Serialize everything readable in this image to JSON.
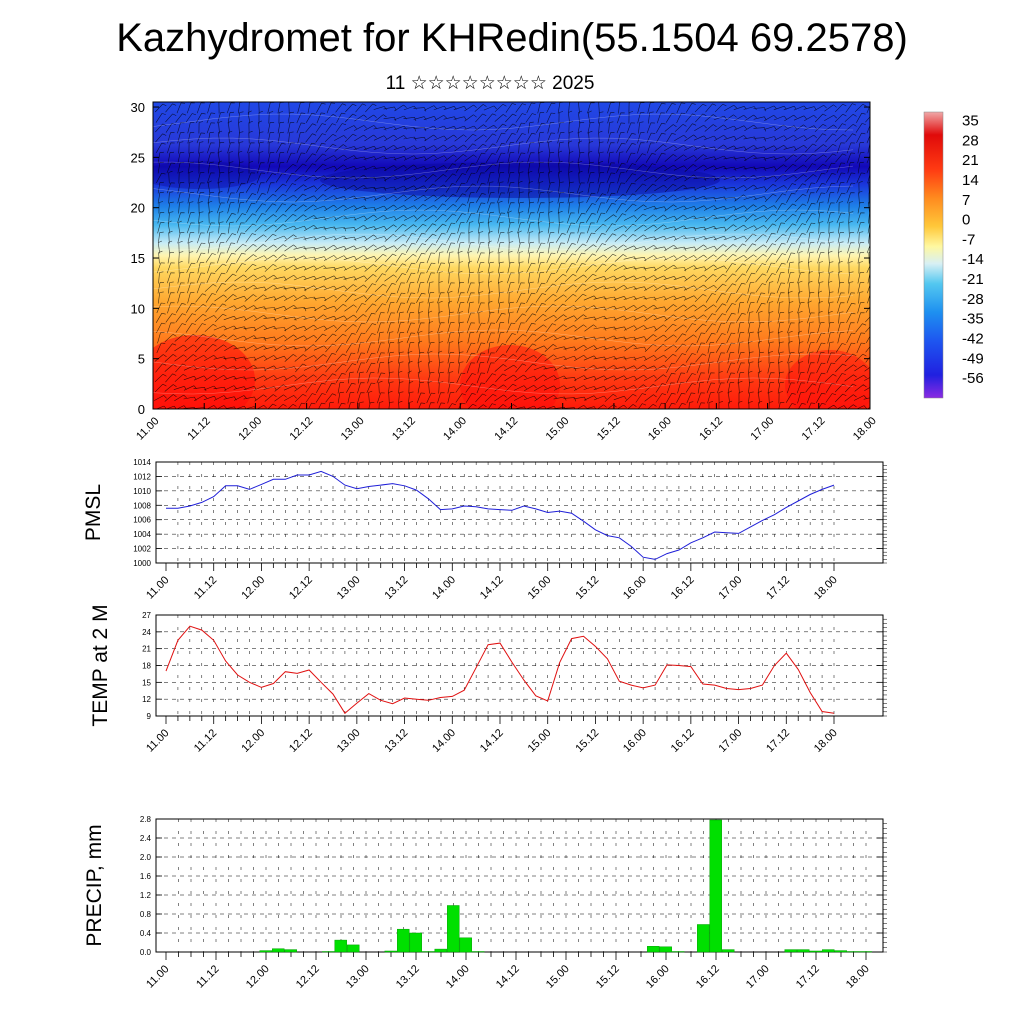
{
  "page": {
    "title": "Kazhydromet for KHRedin(55.1504 69.2578)",
    "subtitle": "11 ☆☆☆☆☆☆☆☆ 2025"
  },
  "colors": {
    "pmsl_line": "#1f1fd8",
    "temp_line": "#e01010",
    "precip_bar": "#00e000",
    "precip_edge": "#00a000"
  },
  "chart_data": [
    {
      "id": "cross_section",
      "type": "heatmap",
      "title": "",
      "xlabel": "",
      "ylabel": "",
      "x_ticks": [
        "11.00",
        "11.12",
        "12.00",
        "12.12",
        "13.00",
        "13.12",
        "14.00",
        "14.12",
        "15.00",
        "15.12",
        "16.00",
        "16.12",
        "17.00",
        "17.12",
        "18.00"
      ],
      "y_ticks": [
        "0",
        "5",
        "10",
        "15",
        "20",
        "25",
        "30"
      ],
      "ylim": [
        0,
        30.5
      ],
      "overlay": "wind barbs",
      "colorbar": {
        "labels": [
          "35",
          "28",
          "21",
          "14",
          "7",
          "0",
          "-7",
          "-14",
          "-21",
          "-28",
          "-35",
          "-42",
          "-49",
          "-56"
        ],
        "range": [
          -63,
          38
        ]
      }
    },
    {
      "id": "pmsl",
      "type": "line",
      "ylabel": "PMSL",
      "x_ticks": [
        "11.00",
        "11.12",
        "12.00",
        "12.12",
        "13.00",
        "13.12",
        "14.00",
        "14.12",
        "15.00",
        "15.12",
        "16.00",
        "16.12",
        "17.00",
        "17.12",
        "18.00"
      ],
      "y_ticks": [
        "1000",
        "1002",
        "1004",
        "1006",
        "1008",
        "1010",
        "1012",
        "1014"
      ],
      "ylim": [
        1000,
        1014
      ],
      "x_hours": [
        0,
        3,
        6,
        9,
        12,
        15,
        18,
        21,
        24,
        27,
        30,
        33,
        36,
        39,
        42,
        45,
        48,
        51,
        54,
        57,
        60,
        63,
        66,
        69,
        72,
        75,
        78,
        81,
        84,
        87,
        90,
        93,
        96,
        99,
        102,
        105,
        108,
        111,
        114,
        117,
        120,
        123,
        126,
        129,
        132,
        135,
        138,
        141,
        144,
        147,
        150,
        153,
        156,
        159,
        162,
        165,
        168
      ],
      "values": [
        1007.6,
        1007.6,
        1007.9,
        1008.4,
        1009.2,
        1010.7,
        1010.7,
        1010.2,
        1010.9,
        1011.6,
        1011.6,
        1012.2,
        1012.2,
        1012.7,
        1012.0,
        1010.8,
        1010.3,
        1010.6,
        1010.8,
        1011.0,
        1010.7,
        1010.1,
        1008.9,
        1007.4,
        1007.5,
        1007.9,
        1007.8,
        1007.5,
        1007.4,
        1007.3,
        1007.9,
        1007.5,
        1007.0,
        1007.2,
        1006.9,
        1005.8,
        1004.6,
        1003.8,
        1003.5,
        1002.3,
        1000.8,
        1000.5,
        1001.3,
        1001.8,
        1002.8,
        1003.5,
        1004.3,
        1004.2,
        1004.1,
        1005.0,
        1005.9,
        1006.7,
        1007.7,
        1008.6,
        1009.5,
        1010.2,
        1010.8
      ]
    },
    {
      "id": "temp",
      "type": "line",
      "ylabel": "TEMP at 2 M",
      "x_ticks": [
        "11.00",
        "11.12",
        "12.00",
        "12.12",
        "13.00",
        "13.12",
        "14.00",
        "14.12",
        "15.00",
        "15.12",
        "16.00",
        "16.12",
        "17.00",
        "17.12",
        "18.00"
      ],
      "y_ticks": [
        "9",
        "12",
        "15",
        "18",
        "21",
        "24",
        "27"
      ],
      "ylim": [
        9,
        27
      ],
      "x_hours": [
        0,
        3,
        6,
        9,
        12,
        15,
        18,
        21,
        24,
        27,
        30,
        33,
        36,
        39,
        42,
        45,
        48,
        51,
        54,
        57,
        60,
        63,
        66,
        69,
        72,
        75,
        78,
        81,
        84,
        87,
        90,
        93,
        96,
        99,
        102,
        105,
        108,
        111,
        114,
        117,
        120,
        123,
        126,
        129,
        132,
        135,
        138,
        141,
        144,
        147,
        150,
        153,
        156,
        159,
        162,
        165,
        168
      ],
      "values": [
        17.0,
        22.5,
        25.0,
        24.3,
        22.5,
        18.8,
        16.3,
        15.0,
        14.1,
        14.8,
        16.9,
        16.6,
        17.2,
        15.0,
        12.9,
        9.5,
        11.3,
        13.0,
        11.8,
        11.2,
        12.2,
        12.0,
        11.8,
        12.3,
        12.5,
        13.6,
        17.6,
        21.7,
        22.0,
        18.6,
        15.4,
        12.6,
        11.7,
        18.5,
        22.8,
        23.2,
        21.4,
        19.2,
        15.2,
        14.5,
        14.0,
        14.5,
        18.1,
        18.0,
        17.8,
        14.7,
        14.5,
        13.9,
        13.7,
        13.9,
        14.5,
        18.0,
        20.2,
        17.3,
        13.2,
        9.8,
        9.5
      ]
    },
    {
      "id": "precip",
      "type": "bar",
      "ylabel": "PRECIP, mm",
      "x_ticks": [
        "11.00",
        "11.12",
        "12.00",
        "12.12",
        "13.00",
        "13.12",
        "14.00",
        "14.12",
        "15.00",
        "15.12",
        "16.00",
        "16.12",
        "17.00",
        "17.12",
        "18.00"
      ],
      "y_ticks": [
        "0.0",
        "0.4",
        "0.8",
        "1.2",
        "1.6",
        "2.0",
        "2.4",
        "2.8"
      ],
      "ylim": [
        0,
        2.8
      ],
      "bar_hours": [
        24,
        27,
        30,
        33,
        39,
        42,
        45,
        54,
        57,
        60,
        63,
        66,
        69,
        72,
        75,
        78,
        81,
        84,
        87,
        90,
        93,
        96,
        99,
        102,
        105,
        108,
        111,
        114,
        117,
        120,
        123,
        126,
        129,
        132,
        135,
        138,
        141,
        144,
        147,
        150,
        153,
        156,
        159,
        162,
        165,
        168
      ],
      "values": [
        0.03,
        0.07,
        0.05,
        0.0,
        0.01,
        0.25,
        0.15,
        0.02,
        0.48,
        0.4,
        0.01,
        0.06,
        0.98,
        0.3,
        0.01,
        0.0,
        0.0,
        0.0,
        0.0,
        0.0,
        0.0,
        0.0,
        0.0,
        0.0,
        0.0,
        0.0,
        0.0,
        0.0,
        0.12,
        0.11,
        0.01,
        0.0,
        0.58,
        2.78,
        0.05,
        0.0,
        0.0,
        0.0,
        0.0,
        0.05,
        0.05,
        0.02,
        0.05,
        0.03,
        0.01,
        0.01
      ]
    }
  ]
}
